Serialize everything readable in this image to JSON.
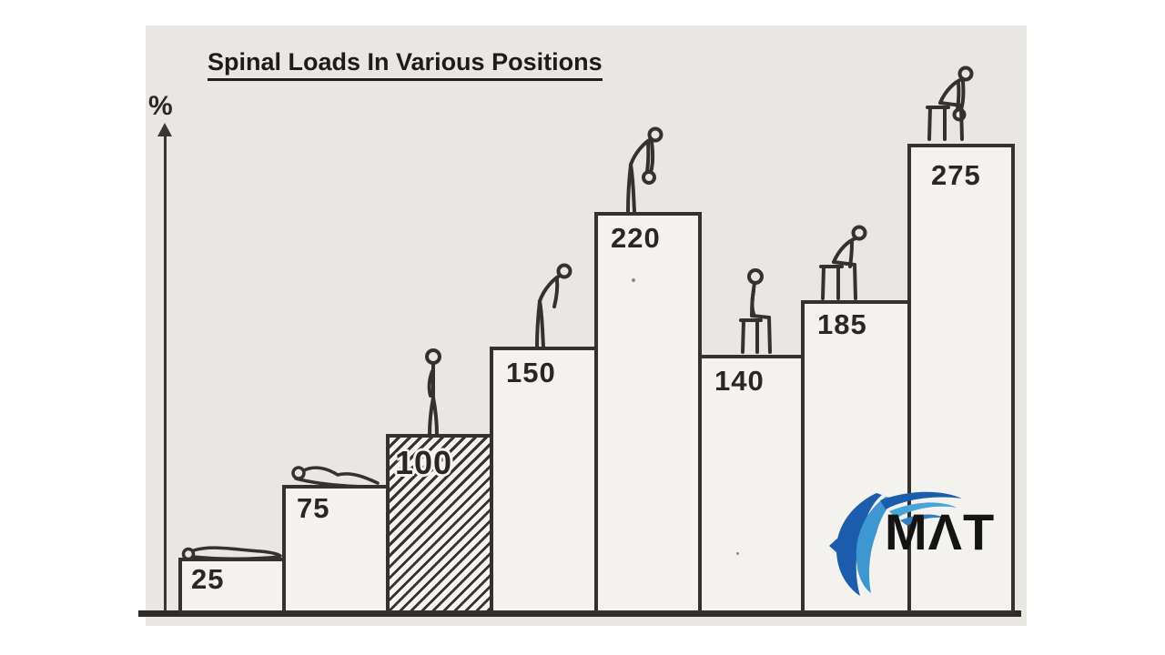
{
  "chart_data": {
    "type": "bar",
    "title": "Spinal Loads In Various Positions",
    "ylabel": "%",
    "y_axis": {
      "label": "%",
      "ticks_visible": false
    },
    "categories": [
      "lying supine",
      "lying on side",
      "standing",
      "standing bent forward",
      "standing bent forward holding weight",
      "sitting upright",
      "sitting bent forward",
      "sitting bent forward holding weight"
    ],
    "values": [
      25,
      75,
      100,
      150,
      220,
      140,
      185,
      275
    ],
    "bars": [
      {
        "label": "25",
        "value": 25,
        "figure": "figure-lying-supine-icon",
        "hatched": false
      },
      {
        "label": "75",
        "value": 75,
        "figure": "figure-lying-side-icon",
        "hatched": false
      },
      {
        "label": "100",
        "value": 100,
        "figure": "figure-standing-icon",
        "hatched": true
      },
      {
        "label": "150",
        "value": 150,
        "figure": "figure-standing-bent-icon",
        "hatched": false
      },
      {
        "label": "220",
        "value": 220,
        "figure": "figure-standing-bent-weight-icon",
        "hatched": false
      },
      {
        "label": "140",
        "value": 140,
        "figure": "figure-sitting-icon",
        "hatched": false
      },
      {
        "label": "185",
        "value": 185,
        "figure": "figure-sitting-bent-icon",
        "hatched": false
      },
      {
        "label": "275",
        "value": 275,
        "figure": "figure-sitting-bent-weight-icon",
        "hatched": false
      }
    ],
    "layout_hints": {
      "grid": false,
      "legend": false,
      "bar_outline": true,
      "highlighted_bar_value": 100
    }
  },
  "logo": {
    "text": "MAT"
  },
  "colors": {
    "panel_bg": "#e9e7e4",
    "bar_fill": "#f4f2ef",
    "hatch_fill": "#f7f5f2",
    "line": "#35322d",
    "label": "#2a2722",
    "logo_blue_dark": "#1c5cad",
    "logo_blue_mid": "#2e7fc0",
    "logo_blue_light": "#47a4d8",
    "logo_text_color": "#141414"
  }
}
